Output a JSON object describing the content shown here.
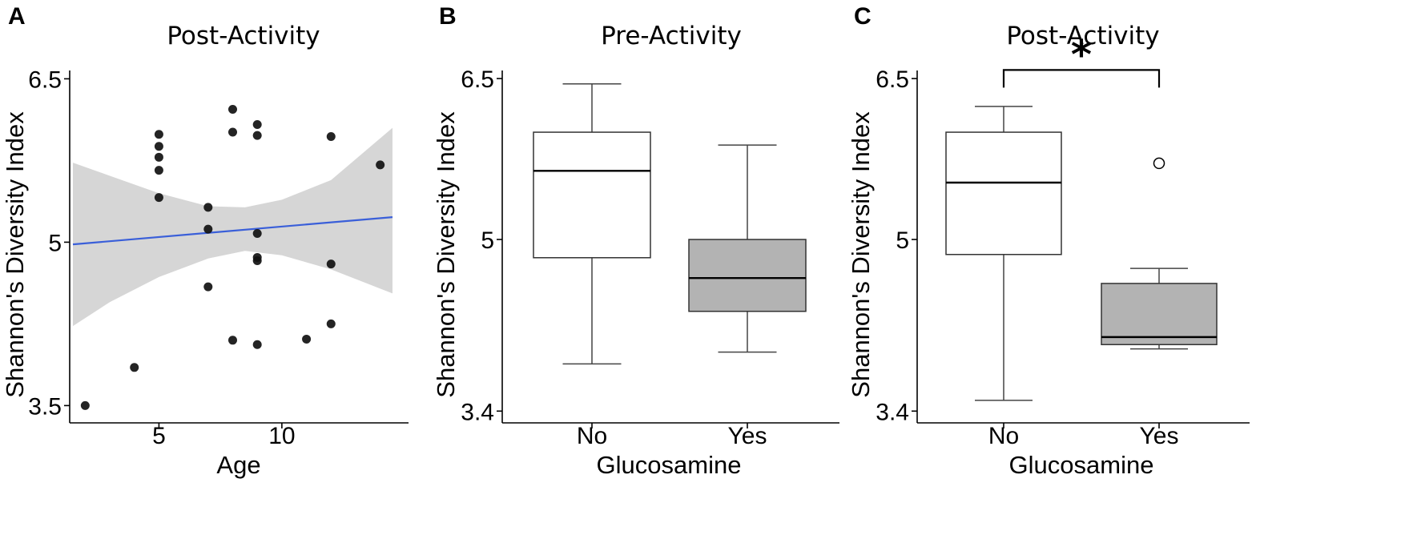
{
  "chart_data": [
    {
      "panel": "A",
      "type": "scatter",
      "title": "Post-Activity",
      "xlabel": "Age",
      "ylabel": "Shannon's Diversity Index",
      "xlim": [
        1.5,
        14.5
      ],
      "ylim": [
        3.4,
        6.65
      ],
      "xticks": [
        5,
        10
      ],
      "yticks": [
        3.5,
        5,
        6.5
      ],
      "points": [
        {
          "x": 2,
          "y": 3.5
        },
        {
          "x": 4,
          "y": 3.85
        },
        {
          "x": 5,
          "y": 5.99
        },
        {
          "x": 5,
          "y": 5.88
        },
        {
          "x": 5,
          "y": 5.78
        },
        {
          "x": 5,
          "y": 5.66
        },
        {
          "x": 5,
          "y": 5.41
        },
        {
          "x": 7,
          "y": 5.32
        },
        {
          "x": 7,
          "y": 5.12
        },
        {
          "x": 7,
          "y": 4.59
        },
        {
          "x": 8,
          "y": 6.22
        },
        {
          "x": 8,
          "y": 6.01
        },
        {
          "x": 8,
          "y": 4.1
        },
        {
          "x": 9,
          "y": 6.08
        },
        {
          "x": 9,
          "y": 5.98
        },
        {
          "x": 9,
          "y": 5.08
        },
        {
          "x": 9,
          "y": 4.86
        },
        {
          "x": 9,
          "y": 4.83
        },
        {
          "x": 9,
          "y": 4.06
        },
        {
          "x": 11,
          "y": 4.11
        },
        {
          "x": 12,
          "y": 5.97
        },
        {
          "x": 12,
          "y": 4.8
        },
        {
          "x": 12,
          "y": 4.25
        },
        {
          "x": 14,
          "y": 5.71
        }
      ],
      "fit": {
        "x": [
          1.5,
          14.5
        ],
        "y": [
          4.98,
          5.23
        ]
      },
      "band": {
        "x": [
          1.5,
          3,
          5,
          7,
          8.5,
          10,
          12,
          14.5
        ],
        "lower": [
          4.23,
          4.45,
          4.68,
          4.85,
          4.92,
          4.88,
          4.75,
          4.53
        ],
        "upper": [
          5.73,
          5.61,
          5.45,
          5.33,
          5.32,
          5.39,
          5.57,
          6.05
        ]
      },
      "colors": {
        "points": "#111111",
        "fit": "#3a5fd9",
        "band": "#d6d6d6"
      }
    },
    {
      "panel": "B",
      "type": "box",
      "title": "Pre-Activity",
      "xlabel": "Glucosamine",
      "ylabel": "Shannon's Diversity Index",
      "categories": [
        "No",
        "Yes"
      ],
      "ylim": [
        3.35,
        6.65
      ],
      "yticks": [
        3.4,
        5,
        6.5
      ],
      "boxes": [
        {
          "name": "No",
          "min": 3.84,
          "q1": 4.83,
          "median": 5.64,
          "q3": 6.0,
          "max": 6.45,
          "outliers": [],
          "fill": "#ffffff"
        },
        {
          "name": "Yes",
          "min": 3.95,
          "q1": 4.33,
          "median": 4.64,
          "q3": 5.0,
          "max": 5.88,
          "outliers": [],
          "fill": "#b3b3b3"
        }
      ]
    },
    {
      "panel": "C",
      "type": "box",
      "title": "Post-Activity",
      "xlabel": "Glucosamine",
      "ylabel": "Shannon's Diversity Index",
      "categories": [
        "No",
        "Yes"
      ],
      "ylim": [
        3.35,
        6.65
      ],
      "yticks": [
        3.4,
        5,
        6.5
      ],
      "boxes": [
        {
          "name": "No",
          "min": 3.5,
          "q1": 4.86,
          "median": 5.53,
          "q3": 6.0,
          "max": 6.24,
          "outliers": [],
          "fill": "#ffffff"
        },
        {
          "name": "Yes",
          "min": 3.98,
          "q1": 4.02,
          "median": 4.09,
          "q3": 4.59,
          "max": 4.73,
          "outliers": [
            5.71
          ],
          "fill": "#b3b3b3"
        }
      ],
      "significance": {
        "from": "No",
        "to": "Yes",
        "y": 6.58,
        "label": "*"
      }
    }
  ]
}
